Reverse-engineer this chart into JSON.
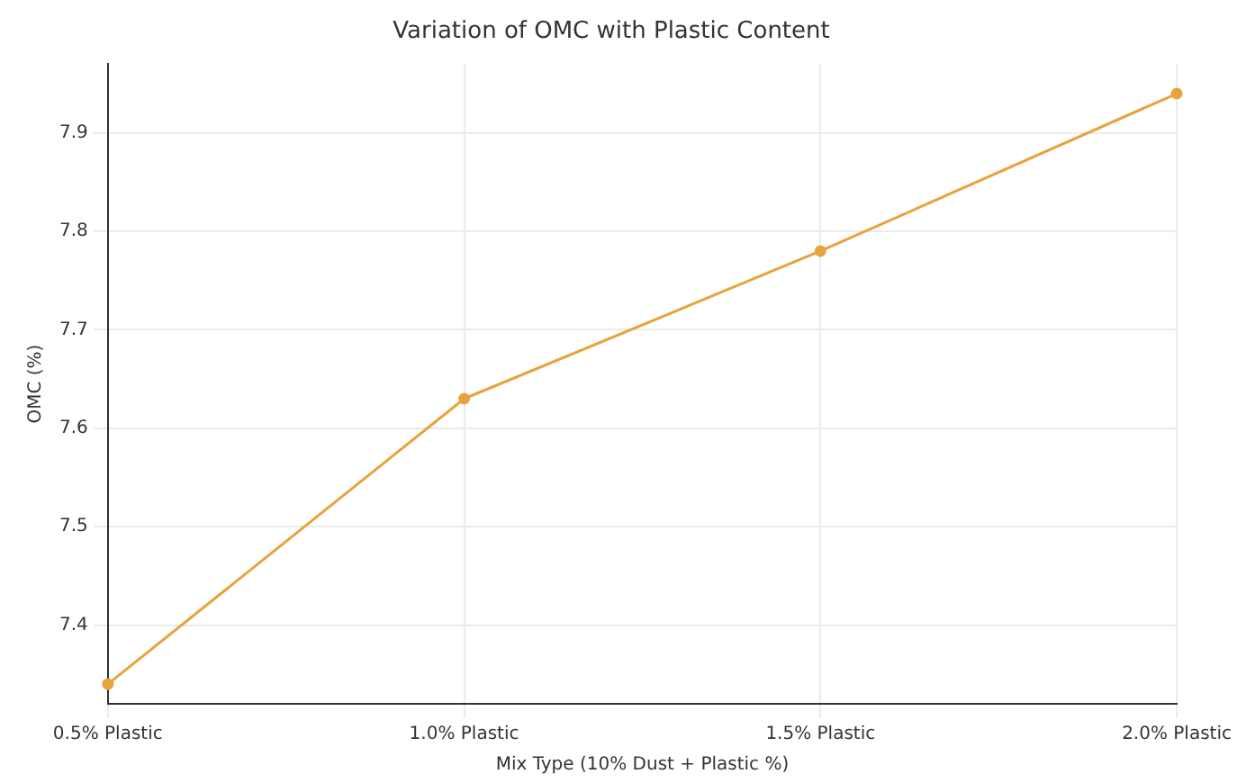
{
  "chart_data": {
    "type": "line",
    "title": "Variation of OMC with Plastic Content",
    "xlabel": "Mix Type (10% Dust + Plastic %)",
    "ylabel": "OMC (%)",
    "categories": [
      "0.5% Plastic",
      "1.0% Plastic",
      "1.5% Plastic",
      "2.0% Plastic"
    ],
    "series": [
      {
        "color": "#e8a33d",
        "values": [
          7.34,
          7.63,
          7.78,
          7.94
        ]
      }
    ],
    "ylim": [
      7.32,
      7.97
    ],
    "yticks": [
      7.4,
      7.5,
      7.6,
      7.7,
      7.8,
      7.9
    ],
    "grid": true,
    "legend": false,
    "marker": "circle",
    "line_style": "solid"
  }
}
